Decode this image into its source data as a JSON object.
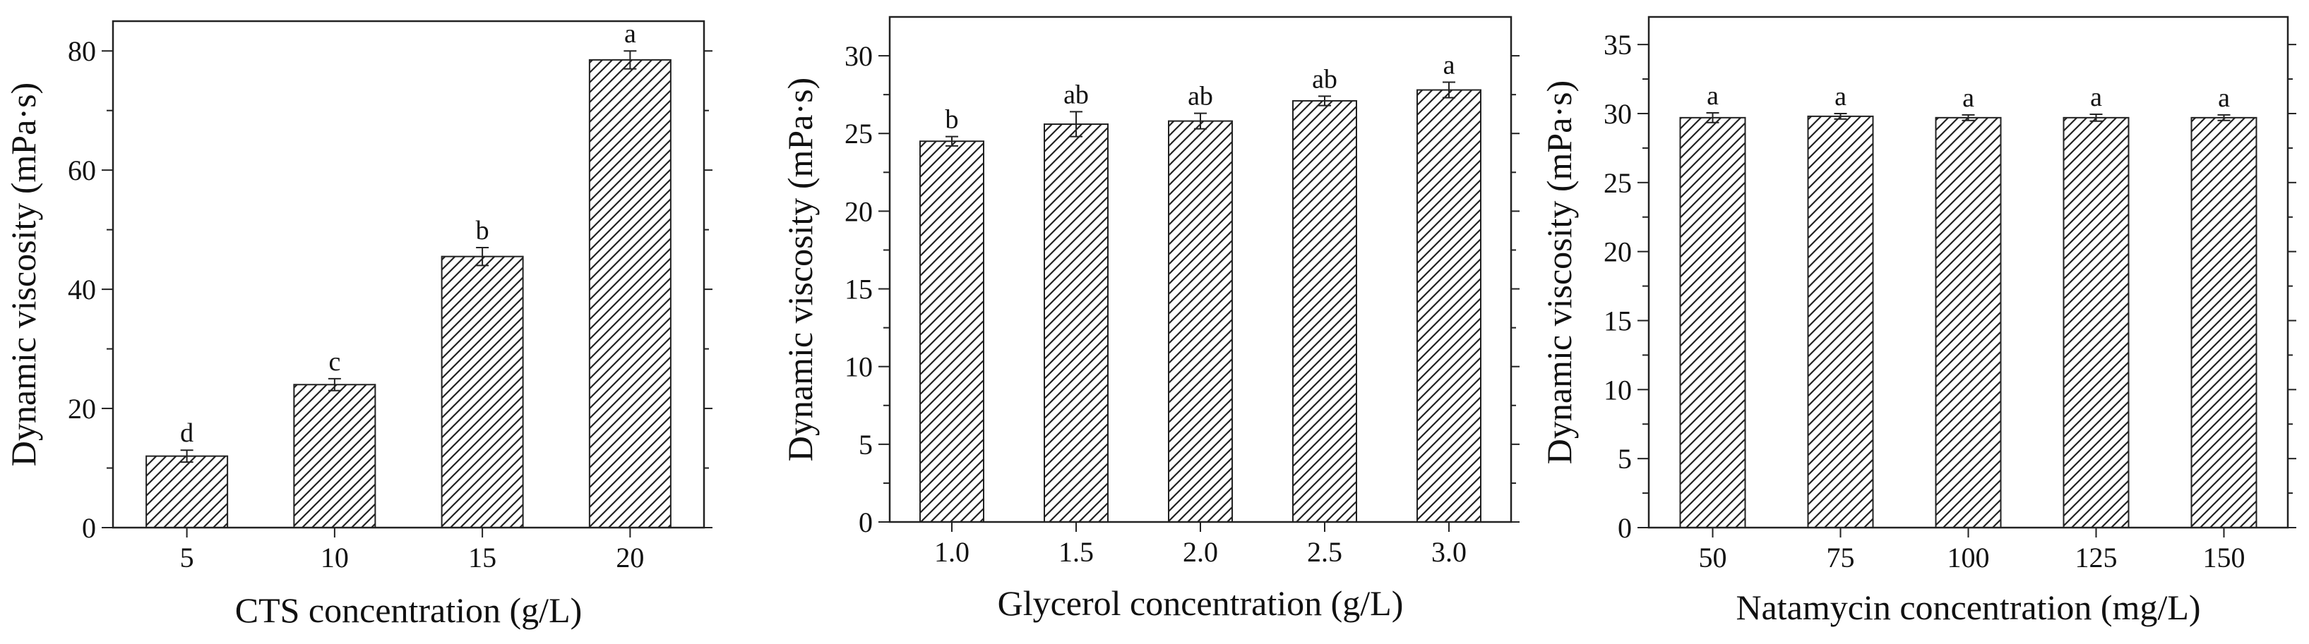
{
  "chart_data": [
    {
      "type": "bar",
      "categories": [
        "5",
        "10",
        "15",
        "20"
      ],
      "values": [
        12,
        24,
        45.5,
        78.5
      ],
      "errors": [
        1.0,
        1.0,
        1.5,
        1.5
      ],
      "significance": [
        "d",
        "c",
        "b",
        "a"
      ],
      "xlabel": "CTS concentration (g/L)",
      "ylabel": "Dynamic viscosity (mPa·s)",
      "ylim": [
        0,
        85
      ],
      "yticks": [
        0,
        20,
        40,
        60,
        80
      ],
      "ytick_labels": [
        "0",
        "20",
        "40",
        "60",
        "80"
      ],
      "yminor_step": 10,
      "fill": "diagonal-hatch",
      "grid": false
    },
    {
      "type": "bar",
      "categories": [
        "1.0",
        "1.5",
        "2.0",
        "2.5",
        "3.0"
      ],
      "values": [
        24.5,
        25.6,
        25.8,
        27.1,
        27.8
      ],
      "errors": [
        0.3,
        0.8,
        0.5,
        0.3,
        0.5
      ],
      "significance": [
        "b",
        "ab",
        "ab",
        "ab",
        "a"
      ],
      "xlabel": "Glycerol concentration (g/L)",
      "ylabel": "Dynamic viscosity (mPa·s)",
      "ylim": [
        0,
        32.5
      ],
      "yticks": [
        0,
        5,
        10,
        15,
        20,
        25,
        30
      ],
      "ytick_labels": [
        "0",
        "5",
        "10",
        "15",
        "20",
        "25",
        "30"
      ],
      "yminor_step": 2.5,
      "fill": "diagonal-hatch",
      "grid": false
    },
    {
      "type": "bar",
      "categories": [
        "50",
        "75",
        "100",
        "125",
        "150"
      ],
      "values": [
        29.7,
        29.8,
        29.7,
        29.7,
        29.7
      ],
      "errors": [
        0.35,
        0.2,
        0.2,
        0.25,
        0.2
      ],
      "significance": [
        "a",
        "a",
        "a",
        "a",
        "a"
      ],
      "xlabel": "Natamycin concentration (mg/L)",
      "ylabel": "Dynamic viscosity (mPa·s)",
      "ylim": [
        0,
        37
      ],
      "yticks": [
        0,
        5,
        10,
        15,
        20,
        25,
        30,
        35
      ],
      "ytick_labels": [
        "0",
        "5",
        "10",
        "15",
        "20",
        "25",
        "30",
        "35"
      ],
      "yminor_step": 2.5,
      "fill": "diagonal-hatch",
      "grid": false
    }
  ]
}
